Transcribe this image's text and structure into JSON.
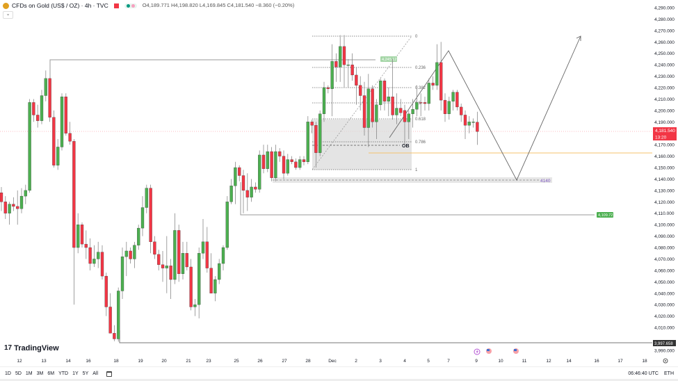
{
  "header": {
    "title": "CFDs on Gold (US$ / OZ) · 4h · TVC",
    "ohlc": "O4,189.771  H4,198.820  L4,169.845  C4,181.540  −8.360 (−0.20%)",
    "collapse_icon": "chevron-down-icon"
  },
  "brand": {
    "logo_text": "TradingView",
    "mark": "17"
  },
  "colors": {
    "up": "#4caf50",
    "down": "#f23645",
    "last_price": "#f23645",
    "ob_line": "#f5c26b",
    "zone_label": "#7e57c2",
    "label_green": "#4caf50"
  },
  "price_axis": {
    "ticks": [
      "4,290.000",
      "4,280.000",
      "4,270.000",
      "4,260.000",
      "4,250.000",
      "4,240.000",
      "4,230.000",
      "4,220.000",
      "4,210.000",
      "4,200.000",
      "4,190.000",
      "4,170.000",
      "4,160.000",
      "4,150.000",
      "4,140.000",
      "4,130.000",
      "4,120.000",
      "4,110.000",
      "4,100.000",
      "4,090.000",
      "4,080.000",
      "4,070.000",
      "4,060.000",
      "4,050.000",
      "4,040.000",
      "4,030.000",
      "4,020.000",
      "4,010.000",
      "3,990.000"
    ],
    "last_price": "4,181.540",
    "countdown": "13:20",
    "low_label": "3,997.658"
  },
  "time_axis": {
    "ticks": [
      "12",
      "13",
      "14",
      "16",
      "18",
      "19",
      "20",
      "21",
      "23",
      "25",
      "26",
      "27",
      "28",
      "Dec",
      "2",
      "3",
      "4",
      "5",
      "7",
      "9",
      "10",
      "11",
      "12",
      "14",
      "16",
      "17",
      "18"
    ]
  },
  "annotations": {
    "high_label": "4,245.12",
    "zone_label": "4140",
    "support_label": "4,109.72",
    "ob_label": "OB",
    "fib_levels": [
      "0",
      "0.236",
      "0.382",
      "0.5",
      "0.618",
      "0.786",
      "1"
    ]
  },
  "toolbar": {
    "ranges": [
      "1D",
      "5D",
      "1M",
      "3M",
      "6M",
      "YTD",
      "1Y",
      "5Y",
      "All"
    ],
    "calendar_icon": "calendar-icon",
    "clock": "06:46:40 UTC",
    "session": "ETH"
  },
  "chart_data": {
    "type": "candlestick",
    "symbol": "CFDs on Gold (US$ / OZ)",
    "interval": "4h",
    "ylim": [
      3985,
      4295
    ],
    "grid": false,
    "candles_ohlc": [
      [
        4128,
        4133,
        4112,
        4120
      ],
      [
        4120,
        4125,
        4105,
        4110
      ],
      [
        4110,
        4120,
        4100,
        4118
      ],
      [
        4118,
        4124,
        4112,
        4116
      ],
      [
        4116,
        4130,
        4100,
        4114
      ],
      [
        4114,
        4132,
        4110,
        4125
      ],
      [
        4125,
        4135,
        4118,
        4130
      ],
      [
        4130,
        4210,
        4128,
        4207
      ],
      [
        4207,
        4210,
        4190,
        4196
      ],
      [
        4196,
        4205,
        4185,
        4191
      ],
      [
        4191,
        4218,
        4188,
        4213
      ],
      [
        4213,
        4235,
        4208,
        4228
      ],
      [
        4228,
        4228,
        4190,
        4194
      ],
      [
        4194,
        4200,
        4150,
        4152
      ],
      [
        4152,
        4175,
        4148,
        4168
      ],
      [
        4168,
        4215,
        4165,
        4212
      ],
      [
        4212,
        4215,
        4178,
        4180
      ],
      [
        4180,
        4190,
        4170,
        4173
      ],
      [
        4173,
        4175,
        4030,
        4080
      ],
      [
        4080,
        4110,
        4075,
        4100
      ],
      [
        4100,
        4102,
        4080,
        4083
      ],
      [
        4083,
        4095,
        4070,
        4080
      ],
      [
        4080,
        4088,
        4060,
        4066
      ],
      [
        4066,
        4082,
        4063,
        4070
      ],
      [
        4070,
        4085,
        4062,
        4076
      ],
      [
        4076,
        4082,
        4052,
        4055
      ],
      [
        4055,
        4058,
        4020,
        4028
      ],
      [
        4028,
        4040,
        4005,
        4005
      ],
      [
        4005,
        4012,
        3998,
        4000
      ],
      [
        4000,
        4045,
        3997.658,
        4042
      ],
      [
        4042,
        4080,
        4035,
        4072
      ],
      [
        4072,
        4085,
        4055,
        4077
      ],
      [
        4077,
        4080,
        4066,
        4070
      ],
      [
        4070,
        4085,
        4062,
        4082
      ],
      [
        4082,
        4100,
        4078,
        4097
      ],
      [
        4097,
        4125,
        4090,
        4115
      ],
      [
        4115,
        4135,
        4110,
        4132
      ],
      [
        4132,
        4135,
        4075,
        4085
      ],
      [
        4085,
        4090,
        4070,
        4074
      ],
      [
        4074,
        4078,
        4060,
        4065
      ],
      [
        4065,
        4077,
        4050,
        4062
      ],
      [
        4062,
        4090,
        4040,
        4064
      ],
      [
        4064,
        4070,
        4035,
        4052
      ],
      [
        4052,
        4110,
        4048,
        4095
      ],
      [
        4095,
        4100,
        4050,
        4057
      ],
      [
        4057,
        4085,
        4052,
        4075
      ],
      [
        4075,
        4085,
        4060,
        4063
      ],
      [
        4063,
        4070,
        4025,
        4028
      ],
      [
        4028,
        4035,
        4020,
        4030
      ],
      [
        4030,
        4080,
        4018,
        4075
      ],
      [
        4075,
        4105,
        4070,
        4085
      ],
      [
        4085,
        4098,
        4058,
        4062
      ],
      [
        4062,
        4075,
        4040,
        4040
      ],
      [
        4040,
        4055,
        4033,
        4052
      ],
      [
        4052,
        4070,
        4048,
        4066
      ],
      [
        4066,
        4082,
        4060,
        4080
      ],
      [
        4080,
        4125,
        4078,
        4120
      ],
      [
        4120,
        4140,
        4118,
        4134
      ],
      [
        4134,
        4155,
        4118,
        4150
      ],
      [
        4150,
        4152,
        4138,
        4143
      ],
      [
        4143,
        4148,
        4110,
        4130
      ],
      [
        4130,
        4145,
        4112,
        4124
      ],
      [
        4124,
        4140,
        4120,
        4133
      ],
      [
        4133,
        4137,
        4128,
        4131
      ],
      [
        4131,
        4165,
        4128,
        4161
      ],
      [
        4161,
        4170,
        4145,
        4149
      ],
      [
        4149,
        4170,
        4146,
        4164
      ],
      [
        4164,
        4168,
        4138,
        4141
      ],
      [
        4141,
        4170,
        4138,
        4164
      ],
      [
        4164,
        4167,
        4155,
        4160
      ],
      [
        4160,
        4165,
        4140,
        4145
      ],
      [
        4145,
        4162,
        4143,
        4157
      ],
      [
        4157,
        4160,
        4153,
        4155
      ],
      [
        4155,
        4158,
        4148,
        4150
      ],
      [
        4150,
        4160,
        4148,
        4157
      ],
      [
        4157,
        4160,
        4152,
        4155
      ],
      [
        4155,
        4195,
        4153,
        4190
      ],
      [
        4190,
        4192,
        4180,
        4187
      ],
      [
        4187,
        4190,
        4150,
        4163
      ],
      [
        4163,
        4200,
        4160,
        4197
      ],
      [
        4197,
        4225,
        4190,
        4220
      ],
      [
        4220,
        4222,
        4215,
        4219
      ],
      [
        4219,
        4258,
        4195,
        4243
      ],
      [
        4243,
        4250,
        4225,
        4238
      ],
      [
        4238,
        4266,
        4225,
        4256
      ],
      [
        4256,
        4266,
        4220,
        4240
      ],
      [
        4240,
        4245,
        4220,
        4240
      ],
      [
        4240,
        4250,
        4226,
        4231
      ],
      [
        4231,
        4238,
        4205,
        4222
      ],
      [
        4222,
        4230,
        4200,
        4213
      ],
      [
        4213,
        4225,
        4178,
        4185
      ],
      [
        4185,
        4232,
        4168,
        4219
      ],
      [
        4219,
        4222,
        4185,
        4190
      ],
      [
        4190,
        4210,
        4175,
        4205
      ],
      [
        4205,
        4228,
        4200,
        4226
      ],
      [
        4226,
        4228,
        4200,
        4208
      ],
      [
        4208,
        4220,
        4195,
        4212
      ],
      [
        4212,
        4245.12,
        4192,
        4196
      ],
      [
        4196,
        4215,
        4188,
        4202
      ],
      [
        4202,
        4210,
        4195,
        4198
      ],
      [
        4200,
        4205,
        4170,
        4190
      ],
      [
        4190,
        4200,
        4175,
        4197
      ],
      [
        4197,
        4210,
        4185,
        4201
      ],
      [
        4201,
        4222,
        4195,
        4207
      ],
      [
        4207,
        4215,
        4195,
        4206.5
      ],
      [
        4207,
        4212,
        4200,
        4206
      ],
      [
        4206,
        4228,
        4200,
        4224
      ],
      [
        4224,
        4230,
        4218,
        4222
      ],
      [
        4222,
        4258,
        4218,
        4242
      ],
      [
        4242,
        4260,
        4200,
        4209
      ],
      [
        4209,
        4215,
        4190,
        4197
      ],
      [
        4197,
        4212,
        4192,
        4208
      ],
      [
        4208,
        4218,
        4200,
        4216
      ],
      [
        4216,
        4218,
        4200,
        4203
      ],
      [
        4203,
        4206,
        4190,
        4196
      ],
      [
        4196,
        4200,
        4175,
        4187
      ],
      [
        4187,
        4195,
        4180,
        4190
      ],
      [
        4190,
        4193,
        4185,
        4190
      ],
      [
        4189.771,
        4198.82,
        4169.845,
        4181.54
      ]
    ]
  }
}
